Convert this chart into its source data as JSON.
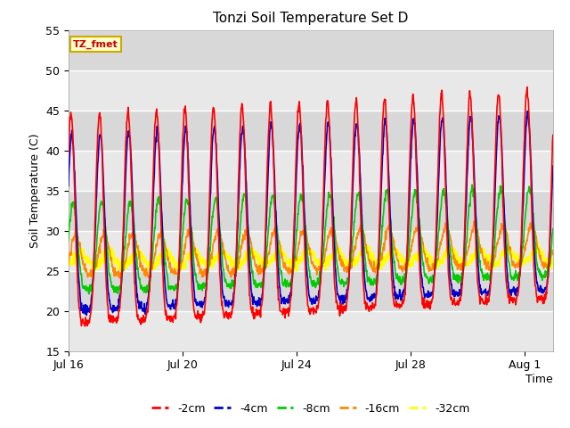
{
  "title": "Tonzi Soil Temperature Set D",
  "xlabel": "Time",
  "ylabel": "Soil Temperature (C)",
  "ylim": [
    15,
    55
  ],
  "xlim_days": [
    0,
    17
  ],
  "xtick_positions": [
    0,
    4,
    8,
    12,
    16
  ],
  "xtick_labels": [
    "Jul 16",
    "Jul 20",
    "Jul 24",
    "Jul 28",
    "Aug 1"
  ],
  "ytick_positions": [
    15,
    20,
    25,
    30,
    35,
    40,
    45,
    50,
    55
  ],
  "bg_color": "#ebebeb",
  "stripe_colors": [
    "#e0e0e0",
    "#ebebeb"
  ],
  "colors": {
    "-2cm": "#ff0000",
    "-4cm": "#0000cc",
    "-8cm": "#00cc00",
    "-16cm": "#ff8800",
    "-32cm": "#ffff00"
  },
  "annotation_text": "TZ_fmet",
  "annotation_bg": "#ffffcc",
  "annotation_border": "#ccaa00",
  "annotation_text_color": "#cc0000"
}
